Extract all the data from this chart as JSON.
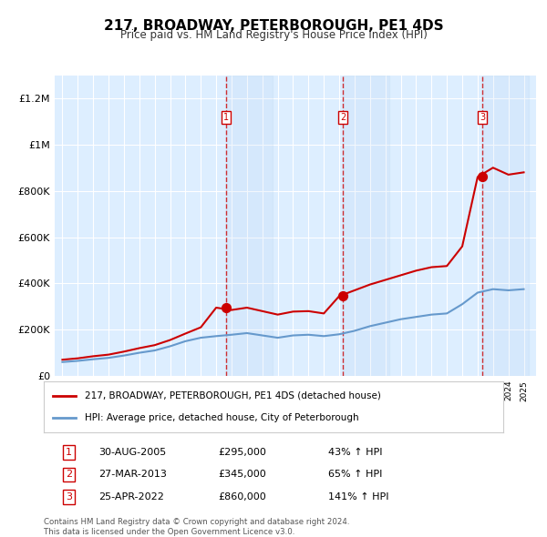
{
  "title": "217, BROADWAY, PETERBOROUGH, PE1 4DS",
  "subtitle": "Price paid vs. HM Land Registry's House Price Index (HPI)",
  "hpi_color": "#6699cc",
  "price_color": "#cc0000",
  "background_color": "#ffffff",
  "plot_bg_color": "#ddeeff",
  "grid_color": "#ffffff",
  "ylim": [
    0,
    1300000
  ],
  "yticks": [
    0,
    200000,
    400000,
    600000,
    800000,
    1000000,
    1200000
  ],
  "ytick_labels": [
    "£0",
    "£200K",
    "£400K",
    "£600K",
    "£800K",
    "£1M",
    "£1.2M"
  ],
  "sale_dates": [
    "2005-08-30",
    "2013-03-27",
    "2022-04-25"
  ],
  "sale_prices": [
    295000,
    345000,
    860000
  ],
  "sale_labels": [
    "1",
    "2",
    "3"
  ],
  "vline_color": "#cc0000",
  "legend_label_price": "217, BROADWAY, PETERBOROUGH, PE1 4DS (detached house)",
  "legend_label_hpi": "HPI: Average price, detached house, City of Peterborough",
  "table_rows": [
    [
      "1",
      "30-AUG-2005",
      "£295,000",
      "43% ↑ HPI"
    ],
    [
      "2",
      "27-MAR-2013",
      "£345,000",
      "65% ↑ HPI"
    ],
    [
      "3",
      "25-APR-2022",
      "£860,000",
      "141% ↑ HPI"
    ]
  ],
  "footer": "Contains HM Land Registry data © Crown copyright and database right 2024.\nThis data is licensed under the Open Government Licence v3.0.",
  "hpi_years": [
    1995,
    1996,
    1997,
    1998,
    1999,
    2000,
    2001,
    2002,
    2003,
    2004,
    2005,
    2006,
    2007,
    2008,
    2009,
    2010,
    2011,
    2012,
    2013,
    2014,
    2015,
    2016,
    2017,
    2018,
    2019,
    2020,
    2021,
    2022,
    2023,
    2024,
    2025
  ],
  "hpi_values": [
    60000,
    65000,
    72000,
    78000,
    88000,
    100000,
    110000,
    128000,
    150000,
    165000,
    172000,
    178000,
    185000,
    175000,
    165000,
    175000,
    178000,
    172000,
    180000,
    195000,
    215000,
    230000,
    245000,
    255000,
    265000,
    270000,
    310000,
    360000,
    375000,
    370000,
    375000
  ],
  "price_line_years": [
    1995,
    1996,
    1997,
    1998,
    1999,
    2000,
    2001,
    2002,
    2003,
    2004,
    2005,
    2006,
    2007,
    2008,
    2009,
    2010,
    2011,
    2012,
    2013,
    2014,
    2015,
    2016,
    2017,
    2018,
    2019,
    2020,
    2021,
    2022,
    2023,
    2024,
    2025
  ],
  "price_line_values": [
    70000,
    76000,
    85000,
    92000,
    105000,
    120000,
    133000,
    155000,
    183000,
    210000,
    295000,
    285000,
    295000,
    280000,
    265000,
    278000,
    280000,
    270000,
    345000,
    370000,
    395000,
    415000,
    435000,
    455000,
    470000,
    475000,
    560000,
    860000,
    900000,
    870000,
    880000
  ]
}
